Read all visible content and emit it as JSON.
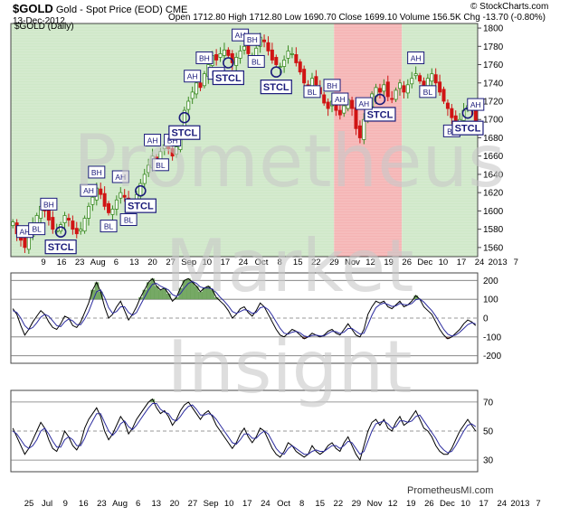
{
  "header": {
    "symbol": "$GOLD",
    "name": "Gold - Spot Price (EOD)",
    "exchange": "CME",
    "date": "13-Dec-2012",
    "open": "Open 1712.80",
    "high": "High 1712.80",
    "low": "Low 1690.70",
    "close": "Close 1699.10",
    "volume": "Volume 156.5K",
    "chg": "Chg -13.70 (-0.80%)",
    "site": "© StockCharts.com",
    "panel_label": "$GOLD (Daily)"
  },
  "watermark": {
    "line1": "Prometheus",
    "line2": "Market",
    "line3": "Insight"
  },
  "footer_site": "PrometheusMI.com",
  "colors": {
    "up": "#3a8a22",
    "down": "#d01414",
    "green_bg": "#cfe8c8",
    "red_bg": "#f5b4b4",
    "osc": "#000000",
    "sig": "#2b2b9e",
    "label": "#1a1a7a"
  },
  "chart_data": [
    {
      "type": "candlestick",
      "title": "$GOLD (Daily)",
      "y_ticks": [
        1560,
        1580,
        1600,
        1620,
        1640,
        1660,
        1680,
        1700,
        1720,
        1740,
        1760,
        1780,
        1800
      ],
      "ylim": [
        1550,
        1805
      ],
      "x_labels": [
        "9",
        "16",
        "23",
        "Aug",
        "6",
        "13",
        "20",
        "27",
        "Sep",
        "10",
        "17",
        "24",
        "Oct",
        "8",
        "15",
        "22",
        "29",
        "Nov",
        "12",
        "19",
        "26",
        "Dec",
        "10",
        "17",
        "24",
        "2013",
        "7"
      ],
      "shaded_regions": [
        {
          "from": "Jun 25",
          "to": "Oct 5",
          "color": "green"
        },
        {
          "from": "Oct 5",
          "to": "Nov 2",
          "color": "red"
        },
        {
          "from": "Nov 2",
          "to": "Dec 13",
          "color": "green"
        }
      ],
      "annotations": [
        "AH",
        "BL",
        "BH",
        "STCL",
        "AH",
        "BH",
        "BL",
        "AH",
        "BL",
        "STCL",
        "AH",
        "BL",
        "BH",
        "STCL",
        "AH",
        "BH",
        "BL",
        "STCL",
        "AH",
        "BH",
        "BL",
        "STCL",
        "BH",
        "AH",
        "BL",
        "STCL",
        "AH",
        "BL",
        "AH",
        "BL",
        "STCL",
        "AH"
      ],
      "closes": [
        1588,
        1575,
        1568,
        1560,
        1572,
        1585,
        1595,
        1605,
        1600,
        1590,
        1580,
        1578,
        1585,
        1595,
        1590,
        1580,
        1575,
        1580,
        1592,
        1605,
        1615,
        1625,
        1618,
        1605,
        1598,
        1602,
        1612,
        1620,
        1615,
        1605,
        1610,
        1618,
        1630,
        1640,
        1650,
        1660,
        1655,
        1665,
        1672,
        1668,
        1660,
        1670,
        1690,
        1710,
        1720,
        1730,
        1740,
        1735,
        1750,
        1760,
        1770,
        1765,
        1772,
        1776,
        1770,
        1762,
        1768,
        1775,
        1780,
        1772,
        1770,
        1778,
        1790,
        1785,
        1775,
        1765,
        1760,
        1758,
        1765,
        1775,
        1772,
        1762,
        1752,
        1740,
        1735,
        1745,
        1738,
        1728,
        1718,
        1712,
        1720,
        1710,
        1705,
        1715,
        1722,
        1712,
        1690,
        1680,
        1700,
        1712,
        1728,
        1735,
        1730,
        1738,
        1725,
        1722,
        1732,
        1740,
        1730,
        1738,
        1745,
        1750,
        1742,
        1735,
        1745,
        1750,
        1740,
        1730,
        1720,
        1712,
        1702,
        1695,
        1700,
        1710,
        1715,
        1712,
        1699
      ]
    },
    {
      "type": "line",
      "title": "",
      "y_ticks": [
        200,
        100,
        0,
        -100,
        -200
      ],
      "ylim": [
        -240,
        240
      ],
      "series": [
        {
          "values": [
            50,
            20,
            -40,
            -90,
            -60,
            -20,
            10,
            40,
            20,
            -20,
            -50,
            -60,
            -30,
            10,
            0,
            -40,
            -50,
            -20,
            30,
            80,
            150,
            190,
            140,
            60,
            0,
            20,
            60,
            90,
            40,
            -10,
            20,
            60,
            110,
            150,
            190,
            210,
            170,
            150,
            160,
            130,
            90,
            110,
            160,
            200,
            210,
            190,
            170,
            140,
            160,
            170,
            150,
            110,
            90,
            70,
            40,
            0,
            20,
            50,
            60,
            30,
            10,
            40,
            80,
            60,
            20,
            -20,
            -60,
            -90,
            -100,
            -80,
            -60,
            -70,
            -90,
            -110,
            -100,
            -80,
            -90,
            -100,
            -90,
            -70,
            -60,
            -80,
            -90,
            -60,
            -30,
            -60,
            -90,
            -100,
            -60,
            20,
            60,
            90,
            80,
            90,
            60,
            50,
            70,
            90,
            60,
            70,
            90,
            120,
            100,
            60,
            40,
            20,
            -20,
            -60,
            -90,
            -110,
            -100,
            -80,
            -60,
            -30,
            -10,
            -20,
            -40
          ]
        },
        {
          "values": [
            40,
            30,
            0,
            -40,
            -60,
            -50,
            -25,
            5,
            20,
            10,
            -15,
            -40,
            -45,
            -20,
            -5,
            -15,
            -35,
            -35,
            -5,
            35,
            90,
            140,
            150,
            110,
            55,
            25,
            35,
            60,
            60,
            30,
            15,
            30,
            70,
            110,
            150,
            180,
            185,
            170,
            160,
            150,
            125,
            115,
            130,
            160,
            185,
            195,
            185,
            165,
            160,
            160,
            155,
            135,
            110,
            90,
            65,
            35,
            25,
            35,
            45,
            40,
            25,
            30,
            55,
            60,
            45,
            15,
            -20,
            -55,
            -80,
            -85,
            -75,
            -70,
            -78,
            -95,
            -100,
            -92,
            -90,
            -95,
            -95,
            -82,
            -70,
            -72,
            -82,
            -75,
            -55,
            -55,
            -70,
            -85,
            -80,
            -35,
            15,
            55,
            72,
            80,
            72,
            62,
            65,
            78,
            72,
            70,
            78,
            98,
            102,
            85,
            62,
            40,
            10,
            -25,
            -60,
            -85,
            -95,
            -90,
            -75,
            -55,
            -35,
            -25,
            -30
          ]
        }
      ]
    },
    {
      "type": "line",
      "title": "",
      "y_ticks": [
        70,
        50,
        30
      ],
      "ylim": [
        22,
        78
      ],
      "series": [
        {
          "values": [
            52,
            46,
            40,
            34,
            38,
            44,
            50,
            56,
            52,
            44,
            38,
            36,
            42,
            50,
            46,
            40,
            37,
            42,
            52,
            58,
            62,
            66,
            60,
            50,
            44,
            48,
            54,
            60,
            56,
            48,
            52,
            58,
            62,
            66,
            70,
            72,
            66,
            62,
            64,
            60,
            54,
            58,
            64,
            68,
            70,
            66,
            62,
            58,
            62,
            64,
            60,
            54,
            50,
            46,
            42,
            38,
            42,
            48,
            52,
            46,
            42,
            46,
            52,
            50,
            44,
            38,
            34,
            32,
            36,
            42,
            40,
            36,
            34,
            32,
            34,
            40,
            36,
            34,
            36,
            40,
            42,
            38,
            36,
            42,
            46,
            40,
            34,
            30,
            40,
            50,
            56,
            58,
            54,
            58,
            52,
            50,
            56,
            60,
            54,
            56,
            60,
            64,
            58,
            52,
            50,
            46,
            40,
            36,
            34,
            34,
            38,
            44,
            50,
            54,
            58,
            54,
            50
          ]
        },
        {
          "values": [
            50,
            48,
            44,
            40,
            38,
            40,
            44,
            50,
            52,
            48,
            43,
            39,
            39,
            44,
            46,
            44,
            40,
            40,
            45,
            52,
            57,
            62,
            62,
            56,
            50,
            47,
            50,
            55,
            57,
            53,
            51,
            54,
            58,
            62,
            66,
            69,
            69,
            65,
            63,
            62,
            58,
            57,
            60,
            64,
            67,
            68,
            65,
            61,
            61,
            62,
            61,
            58,
            54,
            50,
            46,
            42,
            41,
            44,
            48,
            48,
            45,
            45,
            48,
            50,
            48,
            43,
            38,
            35,
            34,
            38,
            40,
            38,
            36,
            34,
            34,
            36,
            37,
            36,
            36,
            38,
            40,
            40,
            38,
            40,
            43,
            42,
            38,
            34,
            36,
            43,
            50,
            55,
            56,
            57,
            55,
            52,
            53,
            57,
            57,
            56,
            57,
            60,
            61,
            57,
            53,
            49,
            45,
            40,
            37,
            35,
            36,
            40,
            45,
            50,
            54,
            55,
            53
          ]
        }
      ]
    },
    {
      "type": "axis",
      "title": "",
      "x_labels": [
        "25",
        "Jul",
        "9",
        "16",
        "23",
        "Aug",
        "6",
        "13",
        "20",
        "27",
        "Sep",
        "10",
        "17",
        "24",
        "Oct",
        "8",
        "15",
        "22",
        "29",
        "Nov",
        "12",
        "19",
        "26",
        "Dec",
        "10",
        "17",
        "24",
        "2013",
        "7"
      ]
    }
  ]
}
